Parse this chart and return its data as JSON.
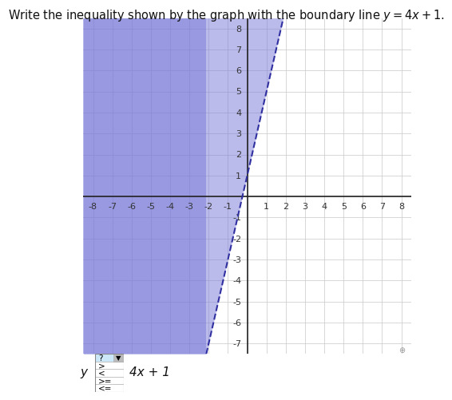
{
  "title": "Write the inequality shown by the graph with the boundary line $y = 4x + 1$.",
  "title_fontsize": 10.5,
  "xlim": [
    -8.5,
    8.5
  ],
  "ylim": [
    -7.5,
    8.5
  ],
  "xmin": -8,
  "xmax": 8,
  "ymin": -7,
  "ymax": 8,
  "xticks": [
    -8,
    -7,
    -6,
    -5,
    -4,
    -3,
    -2,
    -1,
    1,
    2,
    3,
    4,
    5,
    6,
    7,
    8
  ],
  "yticks": [
    -7,
    -6,
    -5,
    -4,
    -3,
    -2,
    -1,
    1,
    2,
    3,
    4,
    5,
    6,
    7,
    8
  ],
  "slope": 4,
  "intercept": 1,
  "shade_color": "#7878d8",
  "shade_alpha": 0.5,
  "line_color": "#3030a0",
  "line_style": "--",
  "line_width": 1.5,
  "grid_color": "#c8c8c8",
  "axis_color": "#222222",
  "background_color": "#ffffff",
  "tick_fontsize": 8,
  "dropdown_items": [
    "?",
    ">",
    "<",
    ">=",
    "<="
  ],
  "dropdown_colors": [
    "#cce8f8",
    "#ffffff",
    "#ffffff",
    "#ffffff",
    "#ffffff"
  ],
  "bottom_label": "y",
  "bottom_expr": "4x + 1",
  "magnifier_color": "#999999"
}
